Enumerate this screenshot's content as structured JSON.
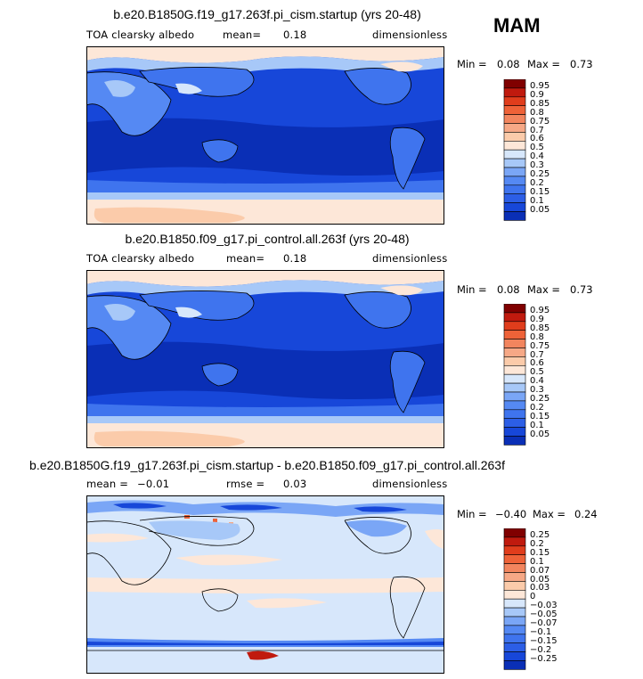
{
  "season": "MAM",
  "colors": {
    "albedo_scale": [
      "#000080",
      "#0a2fb6",
      "#1747d9",
      "#2c5ee6",
      "#3f74ee",
      "#5589f3",
      "#7aa6f6",
      "#a7c8f8",
      "#d7e7fb",
      "#fde7d8",
      "#fbcbaa",
      "#f6a886",
      "#f2855e",
      "#ee6238",
      "#e03d1c",
      "#c01a0e",
      "#800000"
    ],
    "diff_scale": [
      "#000080",
      "#0a2fb6",
      "#1747d9",
      "#2c5ee6",
      "#3f74ee",
      "#5589f3",
      "#7aa6f6",
      "#a7c8f8",
      "#d7e7fb",
      "#fde7d8",
      "#fbcbaa",
      "#f6a886",
      "#f2855e",
      "#ee6238",
      "#e03d1c",
      "#c01a0e",
      "#800000"
    ]
  },
  "panels": [
    {
      "title": "b.e20.B1850G.f19_g17.263f.pi_cism.startup (yrs 20-48)",
      "variable": "TOA clearsky albedo",
      "stat_label": "mean=",
      "stat_value": "0.18",
      "units": "dimensionless",
      "min_label": "Min =",
      "min_value": "0.08",
      "max_label": "Max =",
      "max_value": "0.73",
      "scale": "albedo_scale",
      "levels": [
        "0.95",
        "0.9",
        "0.85",
        "0.8",
        "0.75",
        "0.7",
        "0.6",
        "0.5",
        "0.4",
        "0.3",
        "0.25",
        "0.2",
        "0.15",
        "0.1",
        "0.05"
      ]
    },
    {
      "title": "b.e20.B1850.f09_g17.pi_control.all.263f (yrs 20-48)",
      "variable": "TOA clearsky albedo",
      "stat_label": "mean=",
      "stat_value": "0.18",
      "units": "dimensionless",
      "min_label": "Min =",
      "min_value": "0.08",
      "max_label": "Max =",
      "max_value": "0.73",
      "scale": "albedo_scale",
      "levels": [
        "0.95",
        "0.9",
        "0.85",
        "0.8",
        "0.75",
        "0.7",
        "0.6",
        "0.5",
        "0.4",
        "0.3",
        "0.25",
        "0.2",
        "0.15",
        "0.1",
        "0.05"
      ]
    },
    {
      "title": "b.e20.B1850G.f19_g17.263f.pi_cism.startup - b.e20.B1850.f09_g17.pi_control.all.263f",
      "variable": "",
      "stat_label": "mean =",
      "stat_value": "−0.01",
      "rmse_label": "rmse =",
      "rmse_value": "0.03",
      "units": "dimensionless",
      "min_label": "Min =",
      "min_value": "−0.40",
      "max_label": "Max =",
      "max_value": "0.24",
      "scale": "diff_scale",
      "levels": [
        "0.25",
        "0.2",
        "0.15",
        "0.1",
        "0.07",
        "0.05",
        "0.03",
        "0",
        "−0.03",
        "−0.05",
        "−0.07",
        "−0.1",
        "−0.15",
        "−0.2",
        "−0.25"
      ]
    }
  ],
  "chart_data": [
    {
      "type": "heatmap",
      "title": "b.e20.B1850G.f19_g17.263f.pi_cism.startup (yrs 20-48)",
      "variable": "TOA clearsky albedo",
      "units": "dimensionless",
      "mean": 0.18,
      "min": 0.08,
      "max": 0.73,
      "contour_levels": [
        0.05,
        0.1,
        0.15,
        0.2,
        0.25,
        0.3,
        0.4,
        0.5,
        0.6,
        0.7,
        0.75,
        0.8,
        0.85,
        0.9,
        0.95
      ]
    },
    {
      "type": "heatmap",
      "title": "b.e20.B1850.f09_g17.pi_control.all.263f (yrs 20-48)",
      "variable": "TOA clearsky albedo",
      "units": "dimensionless",
      "mean": 0.18,
      "min": 0.08,
      "max": 0.73,
      "contour_levels": [
        0.05,
        0.1,
        0.15,
        0.2,
        0.25,
        0.3,
        0.4,
        0.5,
        0.6,
        0.7,
        0.75,
        0.8,
        0.85,
        0.9,
        0.95
      ]
    },
    {
      "type": "heatmap",
      "title": "b.e20.B1850G.f19_g17.263f.pi_cism.startup - b.e20.B1850.f09_g17.pi_control.all.263f",
      "units": "dimensionless",
      "mean": -0.01,
      "rmse": 0.03,
      "min": -0.4,
      "max": 0.24,
      "contour_levels": [
        -0.25,
        -0.2,
        -0.15,
        -0.1,
        -0.07,
        -0.05,
        -0.03,
        0,
        0.03,
        0.05,
        0.07,
        0.1,
        0.15,
        0.2,
        0.25
      ]
    }
  ]
}
